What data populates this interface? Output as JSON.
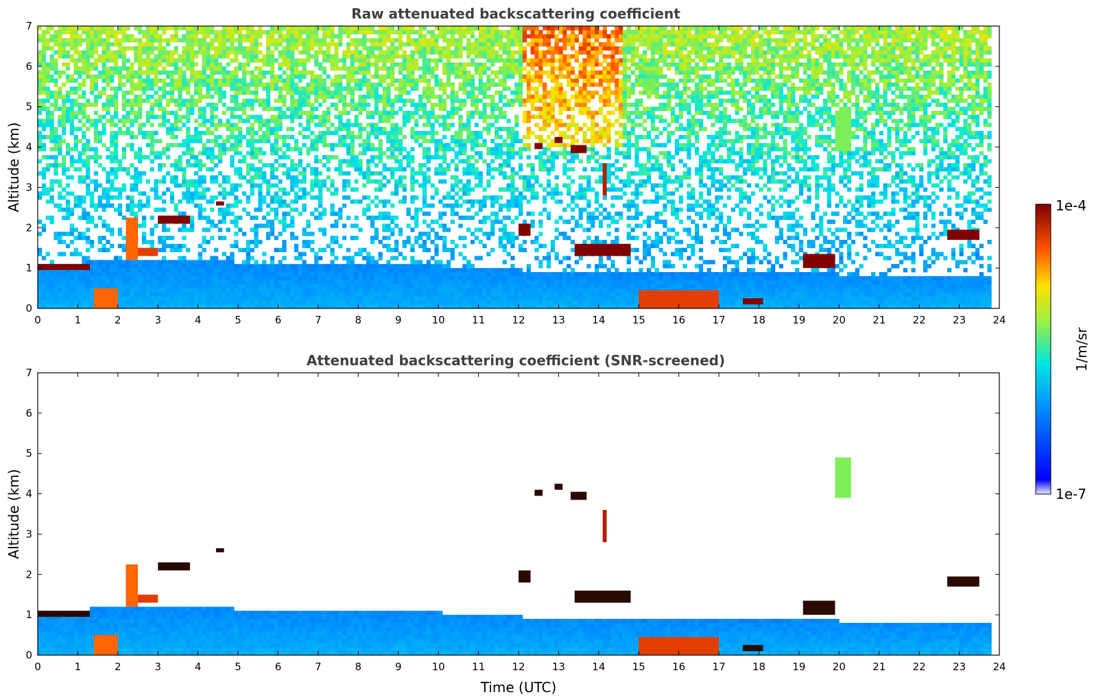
{
  "chart_data": [
    {
      "type": "heatmap",
      "title": "Raw attenuated backscattering coefficient",
      "xlabel": "",
      "ylabel": "Altitude (km)",
      "xlim": [
        0,
        24
      ],
      "ylim": [
        0,
        7
      ],
      "x_ticks": [
        "0",
        "1",
        "2",
        "3",
        "4",
        "5",
        "6",
        "7",
        "8",
        "9",
        "10",
        "11",
        "12",
        "13",
        "14",
        "15",
        "16",
        "17",
        "18",
        "19",
        "20",
        "21",
        "22",
        "23",
        "24"
      ],
      "y_ticks": [
        "0",
        "1",
        "2",
        "3",
        "4",
        "5",
        "6",
        "7"
      ],
      "data_end_time": 23.8,
      "screened": false,
      "mixing_layer_top_km": [
        [
          0,
          1.05
        ],
        [
          3.7,
          1.2
        ],
        [
          6,
          1.0
        ],
        [
          10,
          1.0
        ],
        [
          12,
          0.9
        ],
        [
          15,
          0.8
        ],
        [
          18,
          0.8
        ],
        [
          20,
          0.8
        ],
        [
          22,
          0.75
        ],
        [
          23.8,
          0.8
        ]
      ],
      "cloud_layers": [
        {
          "t0": 0.0,
          "t1": 1.3,
          "base_km": 0.95,
          "top_km": 1.1,
          "level": 1.0
        },
        {
          "t0": 1.4,
          "t1": 2.0,
          "base_km": 0.0,
          "top_km": 0.5,
          "level": 0.85
        },
        {
          "t0": 2.2,
          "t1": 2.5,
          "base_km": 1.2,
          "top_km": 2.25,
          "level": 0.85
        },
        {
          "t0": 2.5,
          "t1": 3.0,
          "base_km": 1.3,
          "top_km": 1.5,
          "level": 0.9
        },
        {
          "t0": 3.0,
          "t1": 3.8,
          "base_km": 2.1,
          "top_km": 2.3,
          "level": 1.0
        },
        {
          "t0": 4.45,
          "t1": 4.65,
          "base_km": 2.55,
          "top_km": 2.65,
          "level": 1.0
        },
        {
          "t0": 12.0,
          "t1": 12.3,
          "base_km": 1.8,
          "top_km": 2.1,
          "level": 1.0
        },
        {
          "t0": 12.4,
          "t1": 12.6,
          "base_km": 3.95,
          "top_km": 4.1,
          "level": 1.0
        },
        {
          "t0": 12.9,
          "t1": 13.1,
          "base_km": 4.1,
          "top_km": 4.25,
          "level": 1.0
        },
        {
          "t0": 13.3,
          "t1": 13.7,
          "base_km": 3.85,
          "top_km": 4.05,
          "level": 1.0
        },
        {
          "t0": 13.4,
          "t1": 14.8,
          "base_km": 1.3,
          "top_km": 1.6,
          "level": 1.0
        },
        {
          "t0": 14.1,
          "t1": 14.2,
          "base_km": 2.8,
          "top_km": 3.6,
          "level": 0.95
        },
        {
          "t0": 15.0,
          "t1": 17.0,
          "base_km": 0.0,
          "top_km": 0.45,
          "level": 0.9
        },
        {
          "t0": 17.6,
          "t1": 18.1,
          "base_km": 0.1,
          "top_km": 0.25,
          "level": 1.0
        },
        {
          "t0": 19.1,
          "t1": 19.9,
          "base_km": 1.0,
          "top_km": 1.35,
          "level": 1.0
        },
        {
          "t0": 19.9,
          "t1": 20.3,
          "base_km": 3.9,
          "top_km": 4.9,
          "level": 0.6
        },
        {
          "t0": 22.7,
          "t1": 23.5,
          "base_km": 1.7,
          "top_km": 1.95,
          "level": 1.0
        }
      ]
    },
    {
      "type": "heatmap",
      "title": "Attenuated backscattering coefficient (SNR-screened)",
      "xlabel": "Time (UTC)",
      "ylabel": "Altitude (km)",
      "xlim": [
        0,
        24
      ],
      "ylim": [
        0,
        7
      ],
      "x_ticks": [
        "0",
        "1",
        "2",
        "3",
        "4",
        "5",
        "6",
        "7",
        "8",
        "9",
        "10",
        "11",
        "12",
        "13",
        "14",
        "15",
        "16",
        "17",
        "18",
        "19",
        "20",
        "21",
        "22",
        "23",
        "24"
      ],
      "y_ticks": [
        "0",
        "1",
        "2",
        "3",
        "4",
        "5",
        "6",
        "7"
      ],
      "data_end_time": 23.8,
      "screened": true
    }
  ],
  "colorbar": {
    "label": "1/m/sr",
    "max_label": "1e-4",
    "min_label": "1e-7",
    "colormap": "jet",
    "scale": "log"
  }
}
